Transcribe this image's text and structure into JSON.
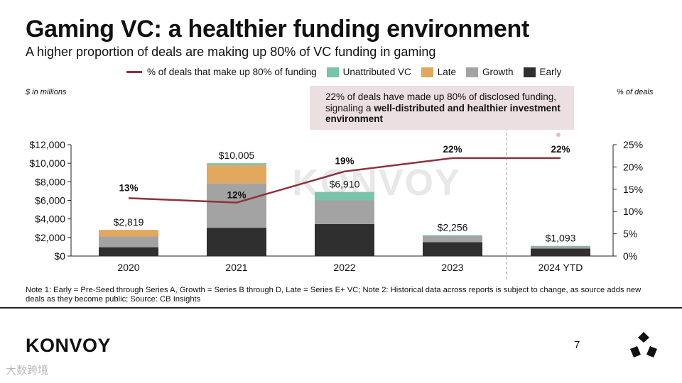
{
  "header": {
    "title": "Gaming VC: a healthier funding environment",
    "subtitle": "A higher proportion of deals are making up 80% of VC funding in gaming"
  },
  "legend": {
    "line": "% of deals that make up 80% of funding",
    "unattributed": "Unattributed VC",
    "late": "Late",
    "growth": "Growth",
    "early": "Early"
  },
  "axis_units": {
    "left": "$ in millions",
    "right": "% of deals"
  },
  "callout": {
    "prefix": "22% of deals have made up 80% of disclosed funding, signaling a ",
    "bold": "well-distributed and healthier investment environment"
  },
  "note": "Note 1: Early = Pre-Seed through Series A, Growth = Series B through D, Late = Series E+ VC; Note 2: Historical data across reports is subject to change, as source adds new deals as they become public; Source: CB Insights",
  "footer": {
    "logo": "KONVOY",
    "page": "7",
    "watermark": "大数跨境"
  },
  "watermark": "KONVOY",
  "colors": {
    "early": "#2f2f2f",
    "growth": "#a3a3a3",
    "late": "#e2a85e",
    "unattributed": "#79c3ac",
    "line": "#8c3240"
  },
  "chart_data": {
    "type": "bar",
    "stacked": true,
    "categories": [
      "2020",
      "2021",
      "2022",
      "2023",
      "2024 YTD"
    ],
    "series": [
      {
        "name": "Early",
        "values": [
          950,
          3050,
          3450,
          1500,
          800
        ]
      },
      {
        "name": "Growth",
        "values": [
          1150,
          4800,
          2550,
          650,
          230
        ]
      },
      {
        "name": "Late",
        "values": [
          719,
          1950,
          0,
          0,
          0
        ]
      },
      {
        "name": "Unattributed VC",
        "values": [
          0,
          205,
          910,
          106,
          63
        ]
      }
    ],
    "totals": [
      2819,
      10005,
      6910,
      2256,
      1093
    ],
    "total_labels": [
      "$2,819",
      "$10,005",
      "$6,910",
      "$2,256",
      "$1,093"
    ],
    "line_series": {
      "name": "% of deals that make up 80% of funding",
      "values": [
        13,
        12,
        19,
        22,
        22
      ],
      "labels": [
        "13%",
        "12%",
        "19%",
        "22%",
        "22%"
      ]
    },
    "y_left": {
      "min": 0,
      "max": 12000,
      "ticks": [
        0,
        2000,
        4000,
        6000,
        8000,
        10000,
        12000
      ],
      "tick_labels": [
        "$0",
        "$2,000",
        "$4,000",
        "$6,000",
        "$8,000",
        "$10,000",
        "$12,000"
      ]
    },
    "y_right": {
      "min": 0,
      "max": 25,
      "ticks": [
        0,
        5,
        10,
        15,
        20,
        25
      ],
      "tick_labels": [
        "0%",
        "5%",
        "10%",
        "15%",
        "20%",
        "25%"
      ]
    }
  }
}
